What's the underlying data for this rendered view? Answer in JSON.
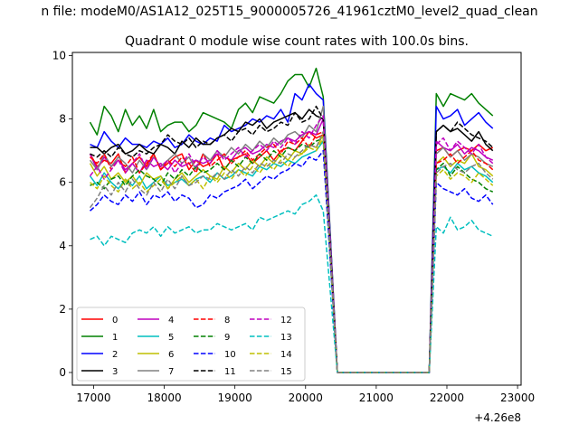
{
  "chart_data": {
    "type": "line",
    "suptitle": "n file: modeM0/AS1A12_025T15_9000005726_41961cztM0_level2_quad_clean",
    "title": "Quadrant 0 module wise count rates with 100.0s bins.",
    "xlabel": "",
    "ylabel": "",
    "x_offset_label": "+4.26e8",
    "xlim": [
      16700,
      23050
    ],
    "ylim": [
      -0.4,
      10.1
    ],
    "x_ticks": [
      17000,
      18000,
      19000,
      20000,
      21000,
      22000,
      23000
    ],
    "x_tick_labels": [
      "17000",
      "18000",
      "19000",
      "20000",
      "21000",
      "22000",
      "23000"
    ],
    "y_ticks": [
      0,
      2,
      4,
      6,
      8,
      10
    ],
    "y_tick_labels": [
      "0",
      "2",
      "4",
      "6",
      "8",
      "10"
    ],
    "grid": false,
    "legend_position": "lower-left",
    "segment1": {
      "x_start": 16950,
      "step": 100,
      "count": 34
    },
    "segment2": {
      "x_start": 21850,
      "step": 100,
      "count": 9
    },
    "zero_span": [
      20450,
      21750
    ],
    "series": [
      {
        "name": "0",
        "color": "#ff0000",
        "dash": "solid",
        "seg1": [
          6.9,
          6.5,
          6.7,
          6.6,
          6.9,
          6.3,
          6.6,
          6.8,
          6.5,
          6.9,
          6.4,
          6.6,
          6.8,
          6.9,
          6.4,
          6.7,
          6.5,
          6.6,
          6.9,
          6.4,
          6.7,
          6.8,
          6.9,
          6.6,
          6.8,
          7.0,
          6.7,
          7.0,
          7.1,
          7.0,
          7.3,
          7.6,
          7.4,
          7.5
        ],
        "seg2": [
          7.0,
          7.1,
          6.8,
          7.0,
          7.1,
          7.0,
          7.2,
          7.0,
          7.1
        ]
      },
      {
        "name": "1",
        "color": "#008000",
        "dash": "solid",
        "seg1": [
          7.9,
          7.5,
          8.4,
          8.1,
          7.6,
          8.3,
          7.8,
          8.1,
          7.7,
          8.3,
          7.6,
          7.8,
          7.9,
          7.9,
          7.6,
          7.8,
          8.2,
          8.1,
          8.0,
          7.9,
          7.7,
          8.3,
          8.5,
          8.2,
          8.7,
          8.6,
          8.5,
          8.8,
          9.2,
          9.4,
          9.4,
          9.0,
          9.6,
          8.7
        ],
        "seg2": [
          8.8,
          8.4,
          8.8,
          8.7,
          8.6,
          8.8,
          8.5,
          8.3,
          8.1
        ]
      },
      {
        "name": "2",
        "color": "#0000ff",
        "dash": "solid",
        "seg1": [
          7.2,
          7.1,
          7.6,
          7.3,
          7.1,
          7.4,
          7.2,
          7.2,
          7.1,
          7.3,
          7.2,
          7.4,
          7.1,
          7.2,
          7.5,
          7.3,
          7.2,
          7.4,
          7.3,
          7.8,
          7.6,
          7.7,
          7.8,
          8.0,
          7.9,
          8.1,
          8.0,
          8.3,
          7.9,
          8.8,
          8.6,
          9.1,
          8.8,
          8.6
        ],
        "seg2": [
          8.4,
          8.0,
          8.1,
          8.3,
          7.8,
          8.0,
          8.2,
          7.9,
          7.7
        ]
      },
      {
        "name": "3",
        "color": "#000000",
        "dash": "solid",
        "seg1": [
          7.1,
          7.1,
          6.9,
          7.1,
          7.2,
          6.9,
          7.0,
          7.2,
          7.0,
          6.9,
          7.2,
          7.1,
          6.9,
          7.3,
          7.1,
          7.4,
          7.2,
          7.2,
          7.4,
          7.5,
          7.7,
          7.6,
          7.9,
          7.8,
          8.0,
          7.7,
          7.9,
          8.0,
          8.1,
          8.2,
          8.0,
          8.3,
          8.1,
          8.0
        ],
        "seg2": [
          7.6,
          7.8,
          7.6,
          7.7,
          7.5,
          7.3,
          7.6,
          7.2,
          7.0
        ]
      },
      {
        "name": "4",
        "color": "#bf00bf",
        "dash": "solid",
        "seg1": [
          6.9,
          6.4,
          6.8,
          6.5,
          6.7,
          6.4,
          6.6,
          6.3,
          6.7,
          6.5,
          6.6,
          6.4,
          6.7,
          6.5,
          6.6,
          6.7,
          6.6,
          6.7,
          6.9,
          6.8,
          6.7,
          7.0,
          7.1,
          6.9,
          7.0,
          7.2,
          7.1,
          7.3,
          7.4,
          7.3,
          7.5,
          7.6,
          7.5,
          8.0
        ],
        "seg2": [
          7.3,
          7.1,
          7.0,
          7.2,
          6.9,
          7.1,
          7.0,
          6.8,
          6.7
        ]
      },
      {
        "name": "5",
        "color": "#00bfbf",
        "dash": "solid",
        "seg1": [
          6.2,
          5.9,
          6.3,
          6.0,
          5.8,
          6.1,
          5.9,
          6.2,
          5.8,
          6.0,
          6.2,
          5.9,
          6.0,
          6.1,
          5.9,
          6.1,
          6.2,
          6.0,
          6.3,
          6.1,
          6.2,
          6.4,
          6.3,
          6.2,
          6.5,
          6.4,
          6.6,
          6.5,
          6.7,
          6.6,
          6.8,
          6.9,
          7.0,
          7.3
        ],
        "seg2": [
          6.4,
          6.5,
          6.3,
          6.6,
          6.4,
          6.5,
          6.3,
          6.2,
          6.0
        ]
      },
      {
        "name": "6",
        "color": "#bfbf00",
        "dash": "solid",
        "seg1": [
          6.6,
          6.2,
          6.5,
          6.1,
          6.3,
          6.0,
          6.2,
          5.9,
          6.3,
          6.1,
          6.2,
          5.8,
          6.1,
          6.3,
          6.0,
          6.2,
          6.4,
          6.2,
          6.1,
          6.5,
          6.3,
          6.6,
          6.4,
          6.7,
          6.5,
          6.8,
          6.6,
          6.9,
          6.7,
          7.0,
          6.9,
          7.2,
          7.1,
          7.5
        ],
        "seg2": [
          6.6,
          6.8,
          6.5,
          6.7,
          6.6,
          6.9,
          6.5,
          6.4,
          6.2
        ]
      },
      {
        "name": "7",
        "color": "#808080",
        "dash": "solid",
        "seg1": [
          6.7,
          6.4,
          6.9,
          6.5,
          6.8,
          6.6,
          6.3,
          6.7,
          6.4,
          6.8,
          6.5,
          6.7,
          6.9,
          6.6,
          6.8,
          6.4,
          6.9,
          6.7,
          7.0,
          6.8,
          7.1,
          6.9,
          7.2,
          7.0,
          7.3,
          7.1,
          7.4,
          7.2,
          7.5,
          7.6,
          7.4,
          7.8,
          7.6,
          8.4
        ],
        "seg2": [
          6.9,
          7.1,
          6.8,
          7.0,
          6.7,
          6.9,
          6.8,
          6.6,
          6.5
        ]
      },
      {
        "name": "8",
        "color": "#ff0000",
        "dash": "dashed",
        "seg1": [
          6.8,
          6.6,
          6.9,
          6.4,
          6.7,
          6.5,
          6.8,
          6.3,
          6.6,
          6.9,
          6.4,
          6.7,
          6.5,
          6.8,
          6.6,
          6.3,
          6.9,
          6.5,
          6.7,
          6.9,
          6.6,
          6.8,
          7.0,
          6.7,
          6.9,
          7.1,
          7.2,
          6.9,
          7.3,
          7.2,
          7.4,
          7.1,
          7.5,
          7.6
        ],
        "seg2": [
          6.6,
          6.7,
          6.9,
          6.6,
          6.8,
          7.0,
          6.7,
          6.6,
          6.4
        ]
      },
      {
        "name": "9",
        "color": "#008000",
        "dash": "dashed",
        "seg1": [
          5.9,
          6.0,
          5.8,
          6.1,
          6.2,
          5.9,
          6.2,
          6.4,
          6.2,
          6.1,
          5.9,
          6.3,
          6.1,
          6.4,
          6.2,
          6.5,
          6.3,
          6.4,
          6.6,
          6.4,
          6.7,
          6.5,
          6.8,
          6.6,
          6.9,
          6.7,
          7.0,
          6.8,
          7.1,
          7.0,
          7.2,
          7.1,
          7.3,
          7.4
        ],
        "seg2": [
          6.4,
          6.6,
          6.2,
          6.5,
          6.3,
          6.1,
          6.0,
          5.8,
          5.7
        ]
      },
      {
        "name": "10",
        "color": "#0000ff",
        "dash": "dashed",
        "seg1": [
          5.1,
          5.3,
          5.6,
          5.4,
          5.3,
          5.6,
          5.4,
          5.7,
          5.3,
          5.6,
          5.5,
          5.7,
          5.4,
          5.6,
          5.5,
          5.2,
          5.3,
          5.6,
          5.5,
          5.7,
          5.8,
          5.9,
          6.1,
          5.8,
          6.0,
          6.2,
          6.1,
          6.3,
          6.4,
          6.6,
          6.5,
          6.8,
          6.7,
          7.0
        ],
        "seg2": [
          6.0,
          5.8,
          5.7,
          5.6,
          5.8,
          5.5,
          5.4,
          5.6,
          5.3
        ]
      },
      {
        "name": "11",
        "color": "#000000",
        "dash": "dashed",
        "seg1": [
          6.9,
          6.8,
          7.0,
          6.8,
          7.1,
          6.9,
          6.8,
          7.0,
          6.9,
          7.1,
          7.2,
          7.5,
          7.3,
          7.2,
          7.4,
          7.1,
          7.3,
          7.2,
          7.4,
          7.5,
          7.3,
          7.6,
          7.7,
          7.5,
          7.8,
          7.6,
          7.7,
          7.9,
          7.8,
          8.2,
          7.9,
          8.0,
          8.4,
          8.0
        ],
        "seg2": [
          7.6,
          7.8,
          7.6,
          7.9,
          7.7,
          7.5,
          7.4,
          7.3,
          7.1
        ]
      },
      {
        "name": "12",
        "color": "#bf00bf",
        "dash": "dashed",
        "seg1": [
          6.2,
          6.5,
          6.1,
          6.4,
          6.7,
          6.3,
          6.6,
          6.9,
          6.4,
          6.8,
          6.5,
          6.7,
          6.3,
          6.6,
          6.9,
          6.5,
          6.8,
          6.6,
          7.0,
          6.7,
          6.9,
          7.1,
          6.8,
          7.0,
          7.2,
          7.0,
          7.3,
          7.1,
          7.4,
          7.2,
          7.6,
          7.4,
          7.8,
          8.1
        ],
        "seg2": [
          7.2,
          7.4,
          7.0,
          7.3,
          7.1,
          6.9,
          7.2,
          6.8,
          6.6
        ]
      },
      {
        "name": "13",
        "color": "#00bfbf",
        "dash": "dashed",
        "seg1": [
          4.2,
          4.3,
          4.0,
          4.3,
          4.2,
          4.1,
          4.4,
          4.5,
          4.4,
          4.6,
          4.3,
          4.6,
          4.4,
          4.5,
          4.6,
          4.4,
          4.5,
          4.5,
          4.7,
          4.6,
          4.5,
          4.6,
          4.7,
          4.5,
          4.9,
          4.8,
          4.9,
          5.0,
          5.1,
          5.0,
          5.3,
          5.4,
          5.6,
          5.1
        ],
        "seg2": [
          4.6,
          4.4,
          4.9,
          4.5,
          4.6,
          4.8,
          4.5,
          4.4,
          4.3
        ]
      },
      {
        "name": "14",
        "color": "#bfbf00",
        "dash": "dashed",
        "seg1": [
          6.0,
          5.8,
          6.2,
          5.9,
          5.7,
          6.1,
          5.8,
          6.0,
          5.7,
          5.9,
          6.1,
          5.8,
          6.0,
          6.2,
          5.9,
          6.1,
          5.8,
          6.2,
          6.0,
          6.3,
          6.1,
          6.4,
          6.2,
          6.5,
          6.3,
          6.6,
          6.4,
          6.7,
          6.5,
          6.8,
          6.9,
          7.1,
          7.0,
          7.4
        ],
        "seg2": [
          6.2,
          6.4,
          6.1,
          6.3,
          6.2,
          6.0,
          6.3,
          6.1,
          5.9
        ]
      },
      {
        "name": "15",
        "color": "#808080",
        "dash": "dashed",
        "seg1": [
          5.2,
          5.5,
          5.9,
          5.6,
          6.0,
          5.7,
          6.1,
          5.8,
          5.6,
          6.0,
          5.7,
          6.1,
          5.8,
          6.2,
          5.9,
          6.0,
          6.2,
          6.1,
          6.3,
          6.1,
          6.4,
          6.2,
          6.5,
          6.3,
          6.6,
          6.5,
          6.7,
          6.6,
          6.9,
          6.8,
          7.0,
          7.2,
          7.1,
          7.6
        ],
        "seg2": [
          6.3,
          6.5,
          6.6,
          6.4,
          6.3,
          6.5,
          6.6,
          6.3,
          6.1
        ]
      }
    ]
  }
}
